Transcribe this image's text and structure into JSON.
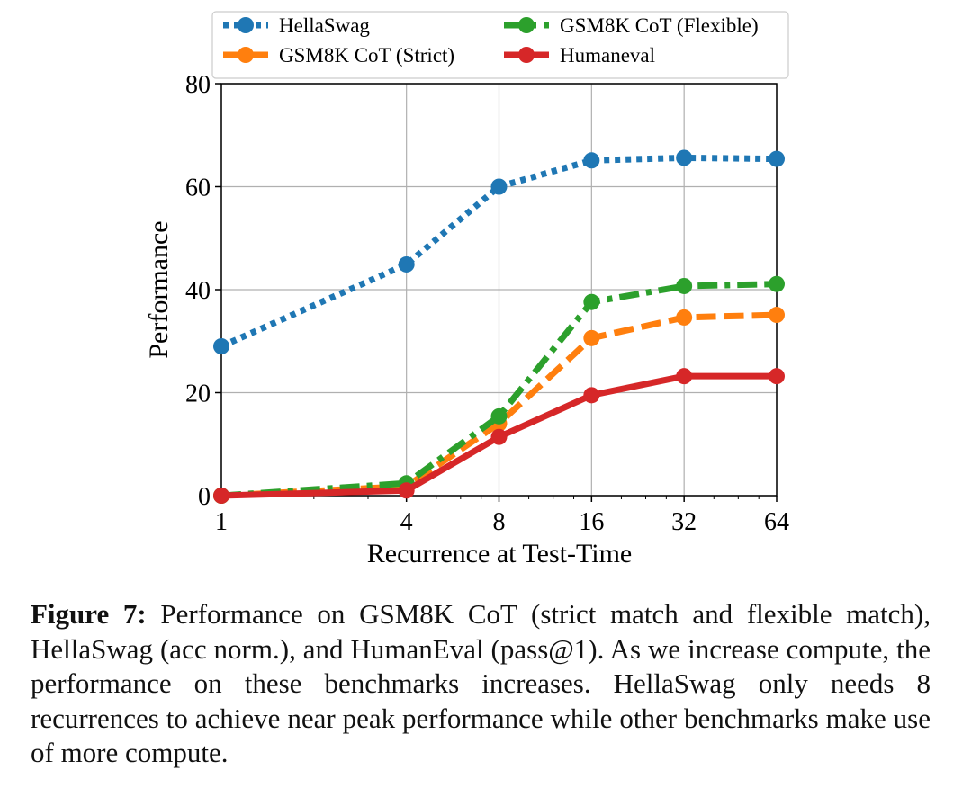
{
  "chart_data": {
    "type": "line",
    "title": "",
    "xlabel": "Recurrence at Test-Time",
    "ylabel": "Performance",
    "x": [
      1,
      4,
      8,
      16,
      32,
      64
    ],
    "xscale": "log2",
    "xticks": [
      "1",
      "4",
      "8",
      "16",
      "32",
      "64"
    ],
    "yticks": [
      "0",
      "20",
      "40",
      "60",
      "80"
    ],
    "ylim": [
      0,
      80
    ],
    "grid": true,
    "legend_placement": "top",
    "series": [
      {
        "name": "HellaSwag",
        "color": "#1f77b4",
        "style": "dotted",
        "values": [
          29.0,
          44.9,
          60.0,
          65.1,
          65.6,
          65.4
        ]
      },
      {
        "name": "GSM8K CoT (Strict)",
        "color": "#ff7f0e",
        "style": "dashed",
        "values": [
          0.0,
          1.8,
          14.0,
          30.6,
          34.6,
          35.1
        ]
      },
      {
        "name": "GSM8K CoT (Flexible)",
        "color": "#2ca02c",
        "style": "dashdot",
        "values": [
          0.0,
          2.4,
          15.4,
          37.6,
          40.7,
          41.1
        ]
      },
      {
        "name": "Humaneval",
        "color": "#d62728",
        "style": "solid",
        "values": [
          0.0,
          1.0,
          11.4,
          19.5,
          23.2,
          23.2
        ]
      }
    ]
  },
  "caption": {
    "label": "Figure 7:",
    "text": " Performance on GSM8K CoT (strict match and flexible match), HellaSwag (acc norm.), and HumanEval (pass@1). As we increase compute, the performance on these benchmarks increases. HellaSwag only needs 8 recurrences to achieve near peak performance while other benchmarks make use of more compute."
  }
}
